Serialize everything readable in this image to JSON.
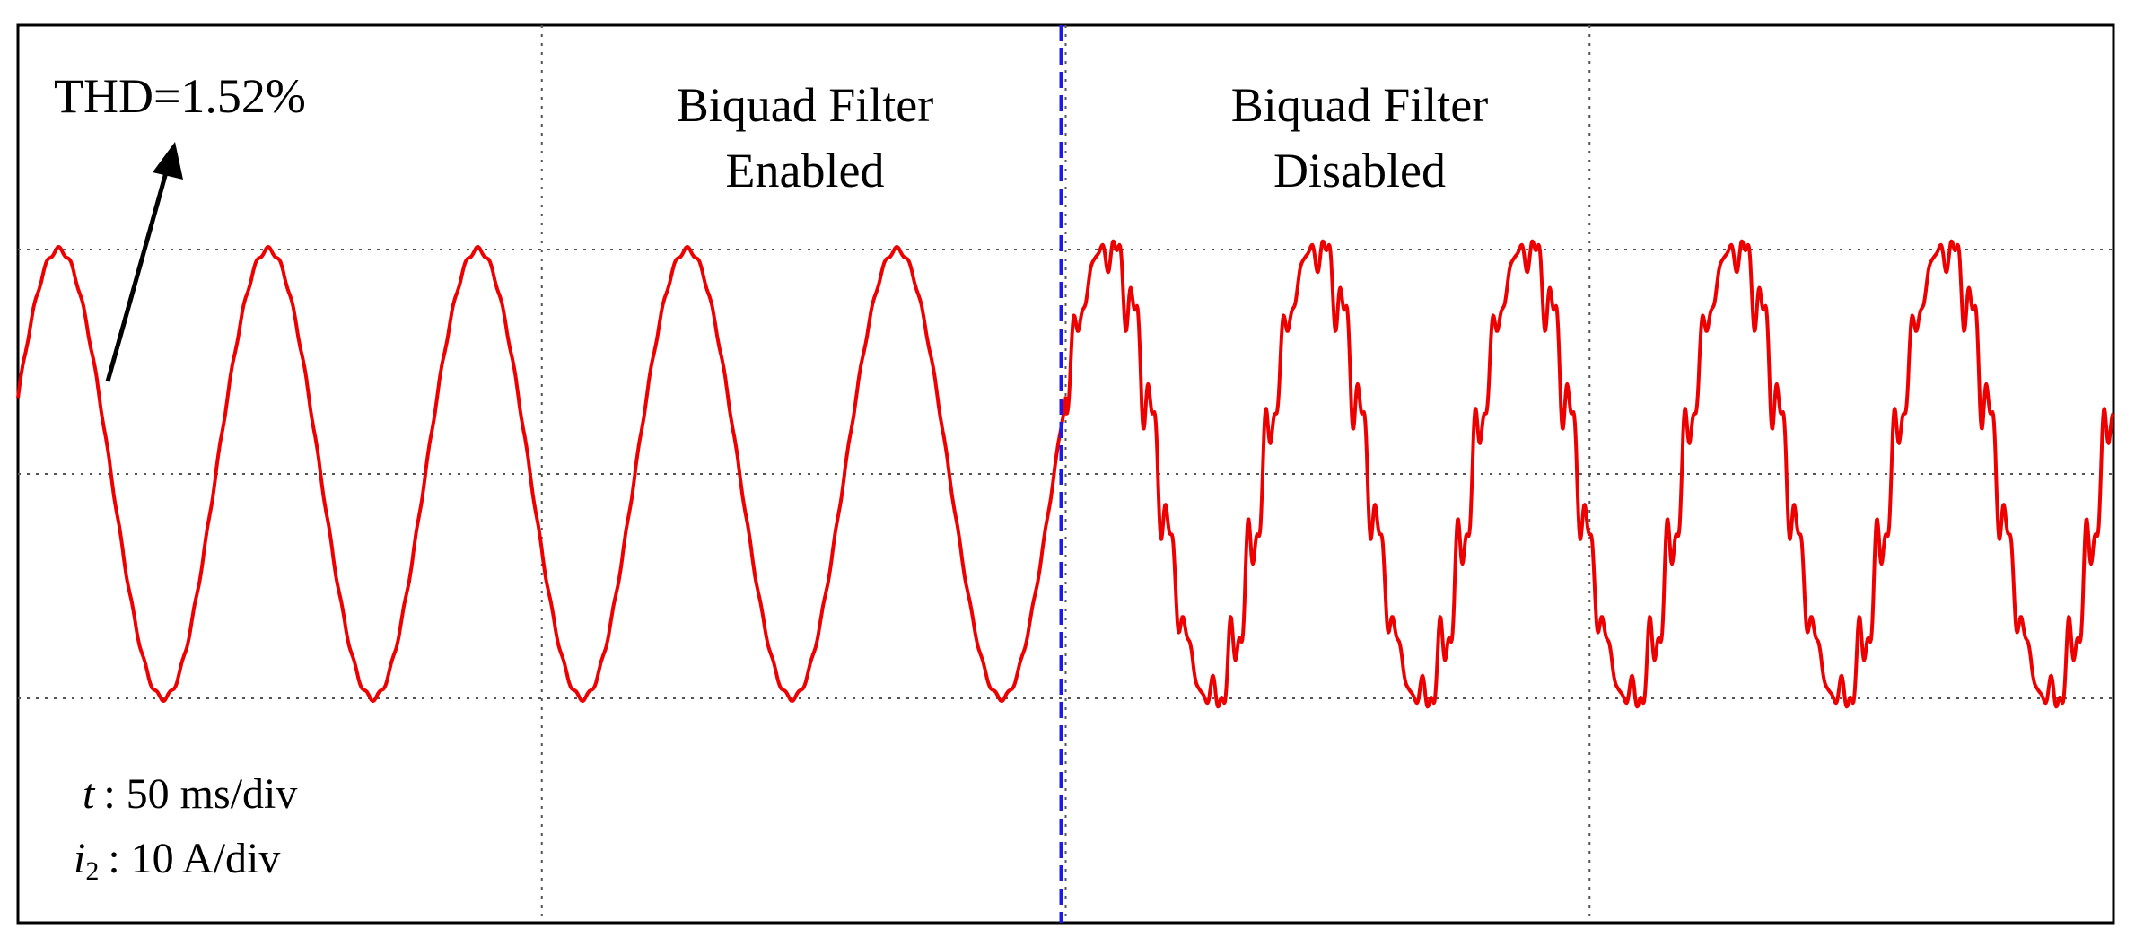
{
  "chart_data": {
    "type": "line",
    "title": "",
    "xlabel": "",
    "ylabel": "",
    "grid": true,
    "x_divisions": 4,
    "y_divisions": 4,
    "time_per_div_ms": 50,
    "current_per_div_A": 10,
    "xlim_ms": [
      0,
      200
    ],
    "ylim_A": [
      -20,
      20
    ],
    "annotations": {
      "thd": "THD=1.52%",
      "enabled_line1": "Biquad Filter",
      "enabled_line2": "Enabled",
      "disabled_line1": "Biquad Filter",
      "disabled_line2": "Disabled",
      "time_scale_var": "t",
      "time_scale_value": ": 50 ms/div",
      "current_scale_var": "i",
      "current_scale_sub": "2",
      "current_scale_value": ": 10 A/div"
    },
    "filter_switch_time_ms": 100,
    "series": [
      {
        "name": "",
        "color": "#ee0000",
        "fundamental_hz": 50,
        "segments": [
          {
            "t_start_ms": 0,
            "t_end_ms": 100,
            "peak_A": 10,
            "distorted": false
          },
          {
            "t_start_ms": 100,
            "t_end_ms": 200,
            "peak_A": 10,
            "distorted": true
          }
        ]
      }
    ],
    "colors": {
      "waveform": "#ee0000",
      "switch_marker": "#1a1aee",
      "grid": "#555555",
      "arrow": "#000000"
    }
  }
}
